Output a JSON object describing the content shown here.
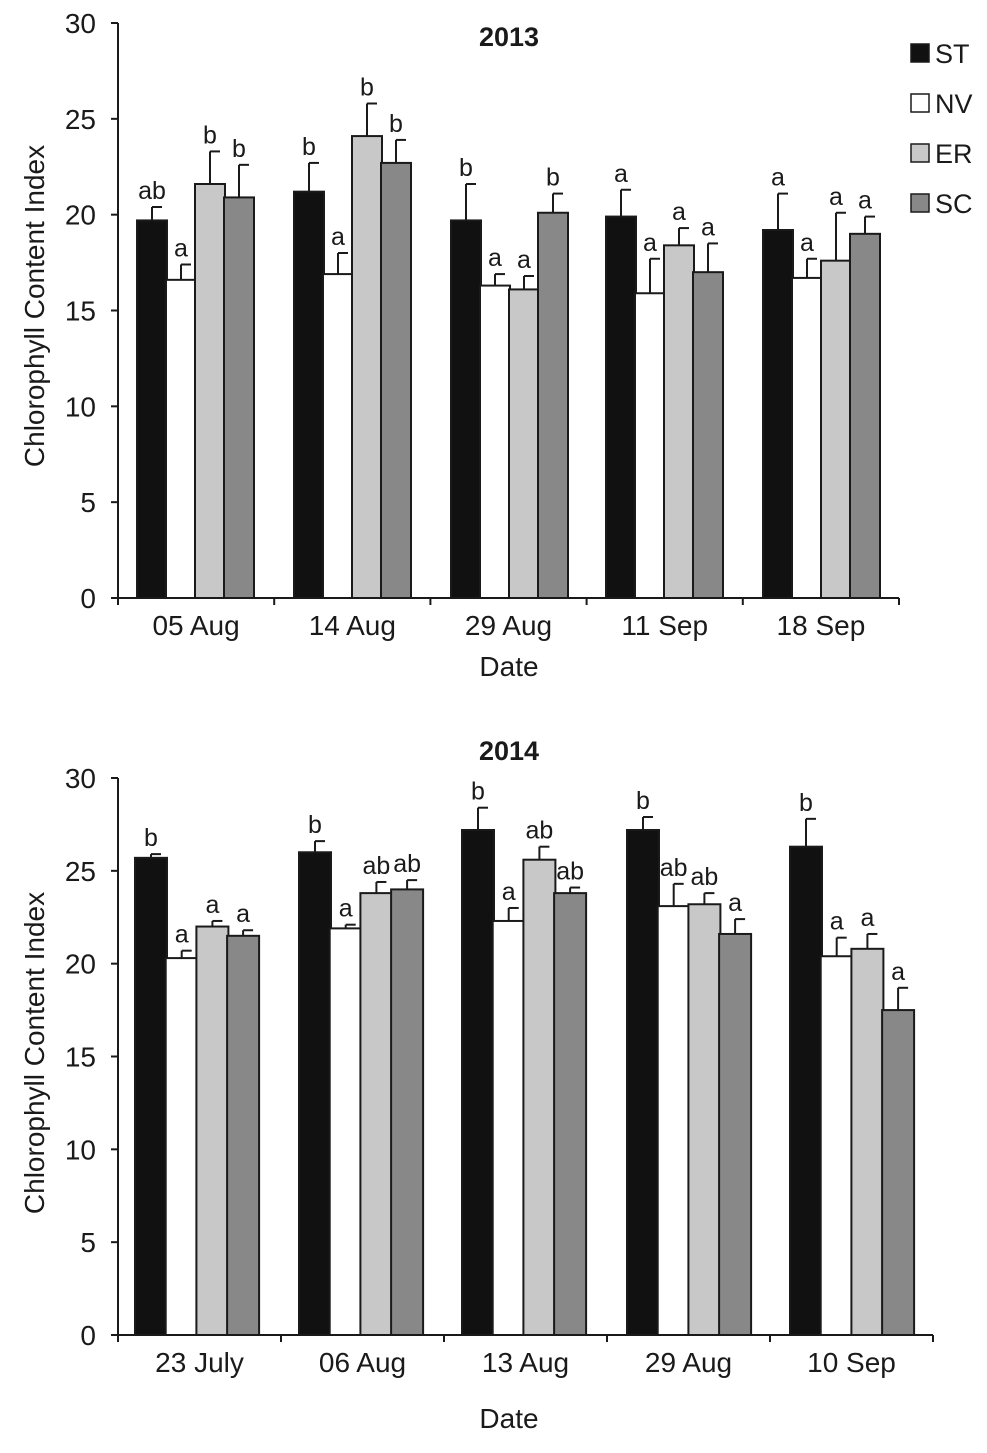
{
  "colors": {
    "ST": "#111111",
    "NV": "#ffffff",
    "ER": "#c8c8c8",
    "SC": "#888888"
  },
  "legend": {
    "entries": [
      "ST",
      "NV",
      "ER",
      "SC"
    ],
    "placement": "top-right"
  },
  "chart_data": [
    {
      "type": "bar",
      "title": "2013",
      "xlabel": "Date",
      "ylabel": "Chlorophyll Content Index",
      "ylim": [
        0,
        30
      ],
      "yticks": [
        0,
        5,
        10,
        15,
        20,
        25,
        30
      ],
      "grid": false,
      "categories": [
        "05 Aug",
        "14 Aug",
        "29 Aug",
        "11 Sep",
        "18 Sep"
      ],
      "series": [
        {
          "name": "ST",
          "values": [
            19.7,
            21.2,
            19.7,
            19.9,
            19.2
          ],
          "errors": [
            0.7,
            1.5,
            1.9,
            1.4,
            1.9
          ],
          "letters": [
            "ab",
            "b",
            "b",
            "a",
            "a"
          ]
        },
        {
          "name": "NV",
          "values": [
            16.6,
            16.9,
            16.3,
            15.9,
            16.7
          ],
          "errors": [
            0.8,
            1.1,
            0.6,
            1.8,
            1.0
          ],
          "letters": [
            "a",
            "a",
            "a",
            "a",
            "a"
          ]
        },
        {
          "name": "ER",
          "values": [
            21.6,
            24.1,
            16.1,
            18.4,
            17.6
          ],
          "errors": [
            1.7,
            1.7,
            0.7,
            0.9,
            2.5
          ],
          "letters": [
            "b",
            "b",
            "a",
            "a",
            "a"
          ]
        },
        {
          "name": "SC",
          "values": [
            20.9,
            22.7,
            20.1,
            17.0,
            19.0
          ],
          "errors": [
            1.7,
            1.2,
            1.0,
            1.5,
            0.9
          ],
          "letters": [
            "b",
            "b",
            "b",
            "a",
            "a"
          ]
        }
      ]
    },
    {
      "type": "bar",
      "title": "2014",
      "xlabel": "Date",
      "ylabel": "Chlorophyll Content Index",
      "ylim": [
        0,
        30
      ],
      "yticks": [
        0,
        5,
        10,
        15,
        20,
        25,
        30
      ],
      "grid": false,
      "categories": [
        "23 July",
        "06 Aug",
        "13 Aug",
        "29 Aug",
        "10 Sep"
      ],
      "series": [
        {
          "name": "ST",
          "values": [
            25.7,
            26.0,
            27.2,
            27.2,
            26.3
          ],
          "errors": [
            0.2,
            0.6,
            1.2,
            0.7,
            1.5
          ],
          "letters": [
            "b",
            "b",
            "b",
            "b",
            "b"
          ]
        },
        {
          "name": "NV",
          "values": [
            20.3,
            21.9,
            22.3,
            23.1,
            20.4
          ],
          "errors": [
            0.4,
            0.2,
            0.7,
            1.2,
            1.0
          ],
          "letters": [
            "a",
            "a",
            "a",
            "ab",
            "a"
          ]
        },
        {
          "name": "ER",
          "values": [
            22.0,
            23.8,
            25.6,
            23.2,
            20.8
          ],
          "errors": [
            0.3,
            0.6,
            0.7,
            0.6,
            0.8
          ],
          "letters": [
            "a",
            "ab",
            "ab",
            "ab",
            "a"
          ]
        },
        {
          "name": "SC",
          "values": [
            21.5,
            24.0,
            23.8,
            21.6,
            17.5
          ],
          "errors": [
            0.3,
            0.5,
            0.3,
            0.8,
            1.2
          ],
          "letters": [
            "a",
            "ab",
            "ab",
            "a",
            "a"
          ]
        }
      ]
    }
  ]
}
